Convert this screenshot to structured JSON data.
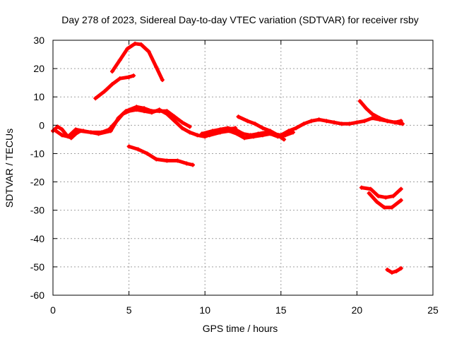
{
  "chart_data": {
    "type": "scatter",
    "title": "Day 278 of 2023, Sidereal Day-to-day VTEC variation (SDTVAR) for receiver rsby",
    "xlabel": "GPS time / hours",
    "ylabel": "SDTVAR / TECUs",
    "xlim": [
      0,
      25
    ],
    "ylim": [
      -60,
      30
    ],
    "xticks": [
      0,
      5,
      10,
      15,
      20,
      25
    ],
    "yticks": [
      -60,
      -50,
      -40,
      -30,
      -20,
      -10,
      0,
      10,
      20,
      30
    ],
    "grid": true,
    "color": "#ff0000",
    "series": [
      {
        "name": "trace-1",
        "points": [
          [
            0,
            -2
          ],
          [
            0.3,
            -0.5
          ],
          [
            0.6,
            -1.5
          ],
          [
            0.9,
            -3.5
          ],
          [
            1.2,
            -4.5
          ],
          [
            1.5,
            -3
          ],
          [
            1.8,
            -2
          ],
          [
            2.5,
            -2.5
          ],
          [
            3.2,
            -2.5
          ],
          [
            3.7,
            -1.5
          ],
          [
            4.2,
            1.5
          ],
          [
            4.6,
            4
          ],
          [
            5,
            5
          ],
          [
            5.5,
            5.5
          ],
          [
            6,
            5
          ],
          [
            6.5,
            4.5
          ],
          [
            7,
            5.5
          ],
          [
            7.5,
            4
          ],
          [
            8,
            1.5
          ],
          [
            8.5,
            -1
          ],
          [
            9,
            -2.5
          ],
          [
            9.5,
            -3.5
          ],
          [
            10,
            -4
          ],
          [
            10.5,
            -3
          ],
          [
            11,
            -2.5
          ],
          [
            11.5,
            -1.5
          ],
          [
            12,
            -1
          ]
        ]
      },
      {
        "name": "trace-2",
        "points": [
          [
            0.2,
            -2
          ],
          [
            0.6,
            -3.5
          ],
          [
            1,
            -4
          ],
          [
            1.5,
            -1.5
          ],
          [
            2,
            -2
          ],
          [
            3,
            -3
          ],
          [
            3.8,
            -2
          ],
          [
            4.3,
            2.5
          ],
          [
            4.8,
            5
          ],
          [
            5.5,
            6.5
          ],
          [
            6,
            6
          ],
          [
            6.5,
            5
          ],
          [
            7,
            5
          ],
          [
            7.5,
            5
          ],
          [
            8,
            3
          ],
          [
            8.5,
            1
          ],
          [
            9,
            -0.5
          ]
        ]
      },
      {
        "name": "trace-3",
        "points": [
          [
            3.9,
            19
          ],
          [
            4.4,
            23
          ],
          [
            4.9,
            27
          ],
          [
            5.4,
            28.8
          ],
          [
            5.8,
            28.5
          ],
          [
            6.3,
            26
          ],
          [
            6.8,
            20.5
          ],
          [
            7.2,
            16
          ]
        ]
      },
      {
        "name": "trace-4",
        "points": [
          [
            2.8,
            9.5
          ],
          [
            3.4,
            12
          ],
          [
            3.9,
            14.5
          ],
          [
            4.4,
            16.5
          ],
          [
            5,
            17
          ],
          [
            5.3,
            17.5
          ]
        ]
      },
      {
        "name": "trace-5",
        "points": [
          [
            5,
            -7.5
          ],
          [
            5.6,
            -8.5
          ],
          [
            6.2,
            -10
          ],
          [
            6.8,
            -12
          ],
          [
            7.5,
            -12.5
          ],
          [
            8.2,
            -12.5
          ],
          [
            8.8,
            -13.5
          ],
          [
            9.2,
            -14
          ]
        ]
      },
      {
        "name": "trace-6",
        "points": [
          [
            9.8,
            -3
          ],
          [
            10.5,
            -2
          ],
          [
            11,
            -1.5
          ],
          [
            11.5,
            -1
          ],
          [
            12,
            -1.5
          ],
          [
            12.5,
            -3
          ],
          [
            13,
            -3.5
          ],
          [
            13.5,
            -3
          ],
          [
            14,
            -2.5
          ],
          [
            14.5,
            -3
          ],
          [
            15,
            -3.5
          ],
          [
            15.5,
            -2
          ],
          [
            16,
            -1
          ],
          [
            16.5,
            0.5
          ],
          [
            17,
            1.5
          ],
          [
            17.5,
            2
          ],
          [
            18,
            1.5
          ],
          [
            18.5,
            1
          ],
          [
            19,
            0.5
          ],
          [
            19.5,
            0.5
          ],
          [
            20,
            1
          ],
          [
            20.5,
            1.5
          ],
          [
            21,
            2.5
          ],
          [
            21.5,
            2
          ],
          [
            22,
            1.5
          ],
          [
            22.5,
            1
          ],
          [
            23,
            0.5
          ]
        ]
      },
      {
        "name": "trace-7",
        "points": [
          [
            12.2,
            3
          ],
          [
            12.8,
            1.5
          ],
          [
            13.3,
            0.5
          ],
          [
            13.8,
            -1
          ],
          [
            14.3,
            -2
          ],
          [
            14.8,
            -3.5
          ],
          [
            15.2,
            -5
          ]
        ]
      },
      {
        "name": "trace-8",
        "points": [
          [
            10.3,
            -3.5
          ],
          [
            11,
            -2.5
          ],
          [
            11.6,
            -2
          ],
          [
            12.1,
            -3
          ],
          [
            12.6,
            -4.5
          ],
          [
            13.2,
            -4
          ],
          [
            13.8,
            -3.5
          ],
          [
            14.3,
            -3
          ],
          [
            14.8,
            -4
          ],
          [
            15.3,
            -3.5
          ],
          [
            15.8,
            -2.5
          ]
        ]
      },
      {
        "name": "trace-9",
        "points": [
          [
            20.2,
            8.5
          ],
          [
            20.6,
            6
          ],
          [
            21,
            4
          ],
          [
            21.5,
            2.5
          ],
          [
            22,
            1.5
          ],
          [
            22.5,
            1
          ],
          [
            22.9,
            1.5
          ]
        ]
      },
      {
        "name": "trace-10",
        "points": [
          [
            20.3,
            -22
          ],
          [
            20.9,
            -22.5
          ],
          [
            21.4,
            -25
          ],
          [
            21.9,
            -25.5
          ],
          [
            22.4,
            -25
          ],
          [
            22.9,
            -22.5
          ]
        ]
      },
      {
        "name": "trace-11",
        "points": [
          [
            20.8,
            -24
          ],
          [
            21.3,
            -27
          ],
          [
            21.8,
            -29
          ],
          [
            22.3,
            -29
          ],
          [
            22.9,
            -26.5
          ]
        ]
      },
      {
        "name": "trace-12",
        "points": [
          [
            22.0,
            -51
          ],
          [
            22.3,
            -52
          ],
          [
            22.6,
            -51.5
          ],
          [
            22.9,
            -50.5
          ]
        ]
      }
    ]
  }
}
